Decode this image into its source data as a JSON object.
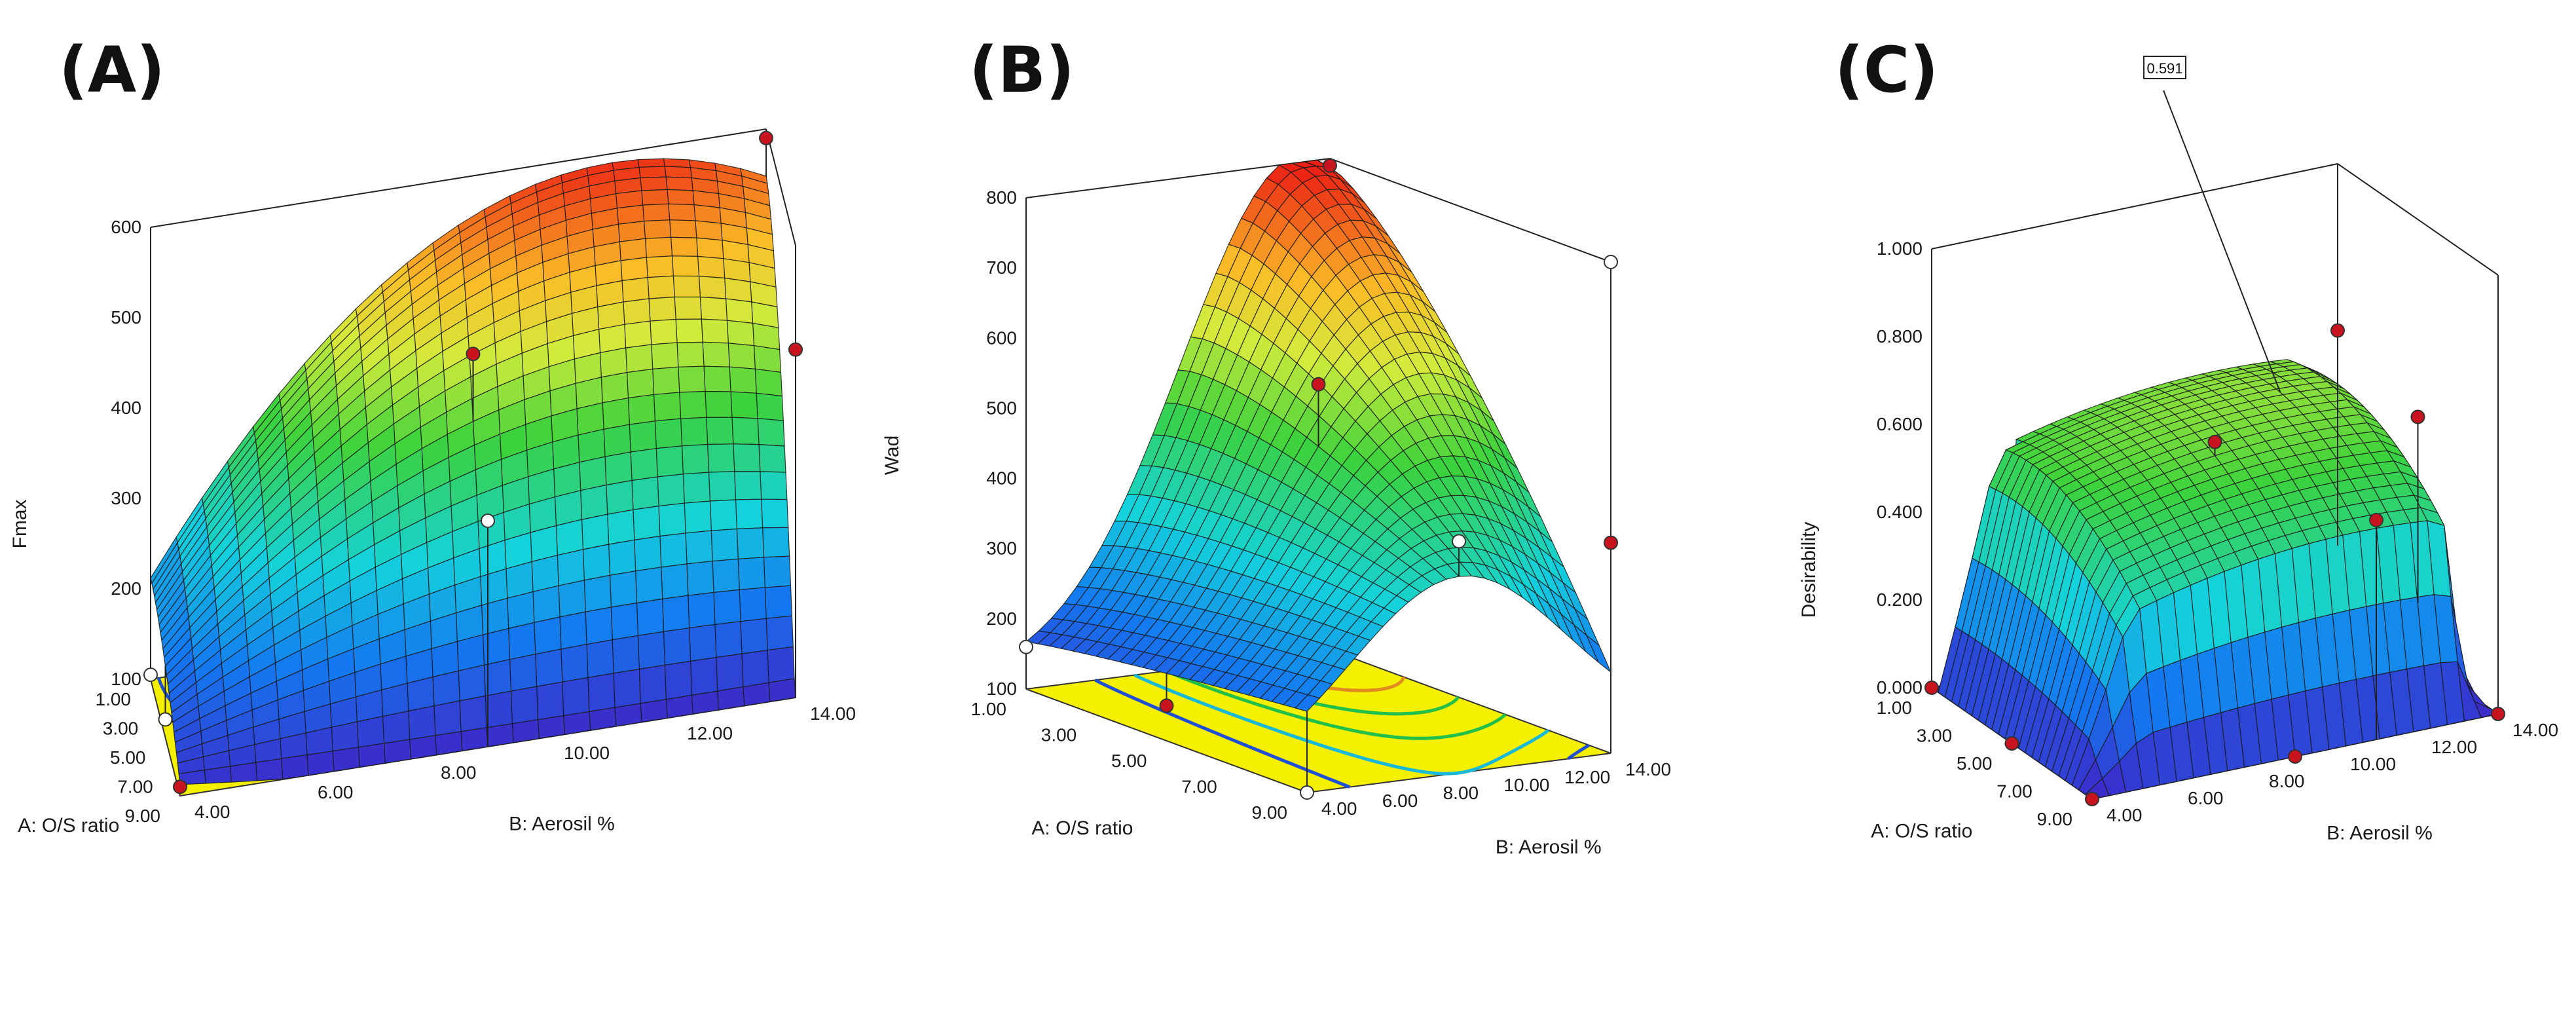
{
  "chart_data": [
    {
      "type": "surface3d",
      "panel_label": "(A)",
      "zlabel": "Fmax",
      "xlabel": "A: O/S ratio",
      "ylabel": "B: Aerosil %",
      "x_ticks": [
        "1.00",
        "3.00",
        "5.00",
        "7.00",
        "9.00"
      ],
      "y_ticks": [
        "4.00",
        "6.00",
        "8.00",
        "10.00",
        "12.00",
        "14.00"
      ],
      "z_ticks": [
        "100",
        "200",
        "300",
        "400",
        "500",
        "600"
      ],
      "xlim": [
        1,
        9
      ],
      "ylim": [
        4,
        14
      ],
      "zlim": [
        100,
        600
      ],
      "surface_model": "Fmax = f(O/S ratio, Aerosil %)",
      "design_points": [
        {
          "x": 1,
          "y": 4,
          "z": 105,
          "above": false
        },
        {
          "x": 1,
          "y": 14,
          "z": 590,
          "above": true
        },
        {
          "x": 5,
          "y": 9,
          "z": 470,
          "above": true
        },
        {
          "x": 9,
          "y": 14,
          "z": 485,
          "above": true
        },
        {
          "x": 5,
          "y": 4,
          "z": 120,
          "above": false
        },
        {
          "x": 9,
          "y": 4,
          "z": 110,
          "above": true
        },
        {
          "x": 9,
          "y": 9,
          "z": 350,
          "above": false
        }
      ]
    },
    {
      "type": "surface3d",
      "panel_label": "(B)",
      "zlabel": "Wad",
      "xlabel": "A: O/S ratio",
      "ylabel": "B: Aerosil %",
      "x_ticks": [
        "1.00",
        "3.00",
        "5.00",
        "7.00",
        "9.00"
      ],
      "y_ticks": [
        "4.00",
        "6.00",
        "8.00",
        "10.00",
        "12.00",
        "14.00"
      ],
      "z_ticks": [
        "100",
        "200",
        "300",
        "400",
        "500",
        "600",
        "700",
        "800"
      ],
      "xlim": [
        1,
        9
      ],
      "ylim": [
        4,
        14
      ],
      "zlim": [
        100,
        800
      ],
      "surface_model": "Wad = f(O/S ratio, Aerosil %)",
      "design_points": [
        {
          "x": 1,
          "y": 4,
          "z": 160,
          "above": false
        },
        {
          "x": 1,
          "y": 14,
          "z": 790,
          "above": true
        },
        {
          "x": 5,
          "y": 9,
          "z": 580,
          "above": true
        },
        {
          "x": 9,
          "y": 14,
          "z": 800,
          "above": false
        },
        {
          "x": 5,
          "y": 4,
          "z": 150,
          "above": true
        },
        {
          "x": 9,
          "y": 4,
          "z": 100,
          "above": false
        },
        {
          "x": 9,
          "y": 9,
          "z": 430,
          "above": false
        },
        {
          "x": 9,
          "y": 14,
          "z": 400,
          "above": true
        }
      ]
    },
    {
      "type": "surface3d",
      "panel_label": "(C)",
      "zlabel": "Desirability",
      "xlabel": "A: O/S ratio",
      "ylabel": "B: Aerosil %",
      "x_ticks": [
        "1.00",
        "3.00",
        "5.00",
        "7.00",
        "9.00"
      ],
      "y_ticks": [
        "4.00",
        "6.00",
        "8.00",
        "10.00",
        "12.00",
        "14.00"
      ],
      "z_ticks": [
        "0.000",
        "0.200",
        "0.400",
        "0.600",
        "0.800",
        "1.000"
      ],
      "xlim": [
        1,
        9
      ],
      "ylim": [
        4,
        14
      ],
      "zlim": [
        0,
        1
      ],
      "surface_model": "Desirability = f(O/S ratio, Aerosil %)",
      "optimum_flag": "0.591",
      "design_points": [
        {
          "x": 1,
          "y": 4,
          "z": 0.0,
          "above": true
        },
        {
          "x": 1,
          "y": 14,
          "z": 0.62,
          "above": true
        },
        {
          "x": 5,
          "y": 9,
          "z": 0.59,
          "above": true
        },
        {
          "x": 9,
          "y": 14,
          "z": 0.0,
          "above": true
        },
        {
          "x": 9,
          "y": 4,
          "z": 0.0,
          "above": true
        },
        {
          "x": 5,
          "y": 4,
          "z": 0.0,
          "above": true
        },
        {
          "x": 9,
          "y": 9,
          "z": 0.0,
          "above": true
        },
        {
          "x": 5,
          "y": 14,
          "z": 0.55,
          "above": true
        },
        {
          "x": 9,
          "y": 11,
          "z": 0.5,
          "above": true
        }
      ]
    }
  ]
}
